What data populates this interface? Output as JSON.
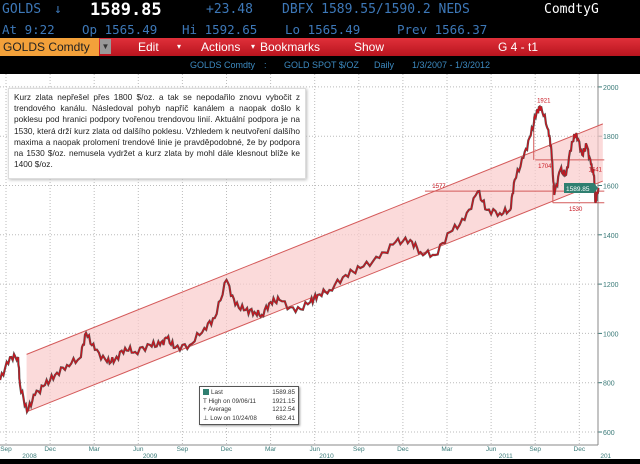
{
  "header": {
    "ticker": "GOLDS",
    "arrow": "↓",
    "last": "1589.85",
    "change": "+23.48",
    "quote": "DBFX 1589.55/1590.2 NEDS",
    "brand": "ComdtyG",
    "time": "At  9:22",
    "open": "Op 1565.49",
    "high": "Hi 1592.65",
    "low": "Lo 1565.49",
    "prev": "Prev 1566.37"
  },
  "menubar": {
    "security": "GOLDS Comdty",
    "edit": "Edit",
    "actions": "Actions",
    "bookmarks": "Bookmarks",
    "show": "Show",
    "page": "G 4 - t1"
  },
  "subtitle": {
    "security": "GOLDS Comdty",
    "sep": ":",
    "name": "GOLD SPOT $/OZ",
    "period": "Daily",
    "range": "1/3/2007 - 1/3/2012"
  },
  "note": "Kurz zlata nepřešel přes 1800 $/oz. a tak se nepodařilo znovu vybočit z trendového kanálu. Následoval pohyb napříč kanálem a naopak došlo k poklesu pod hranici podpory tvořenou trendovou linií. Aktuální podpora je na 1530, která drží kurz zlata od dalšího poklesu. Vzhledem k neutvoření dalšího maxima a naopak prolomení trendové linie je pravděpodobné, že by podpora na 1530 $/oz. nemusela vydržet a kurz zlata by mohl dále klesnout blíže ke 1400 $/oz.",
  "legend": [
    {
      "label": "Last",
      "value": "1589.85",
      "icon": "square"
    },
    {
      "label": "High on 09/06/11",
      "value": "1921.15",
      "icon": "T"
    },
    {
      "label": "Average",
      "value": "1212.54",
      "icon": "+"
    },
    {
      "label": "Low on 10/24/08",
      "value": "682.41",
      "icon": "⊥"
    }
  ],
  "colors": {
    "price": "#c8141e",
    "channel_fill": "#f9caca",
    "channel_line": "#d45a5a",
    "axis_text": "#3a7a78",
    "last_tag": "#2f7f70"
  },
  "chart_data": {
    "type": "line",
    "title": "GOLD SPOT $/OZ",
    "ylim": [
      600,
      2000
    ],
    "y_ticks": [
      600,
      800,
      1000,
      1200,
      1400,
      1600,
      1800,
      2000
    ],
    "y_tick_labels": [
      "600",
      "800",
      "1000",
      "1200",
      "1400",
      "1600",
      "1800",
      "2000"
    ],
    "x_unit": "months since Sep 2008",
    "x_ticks": [
      {
        "m": 0,
        "label": "Sep"
      },
      {
        "m": 3,
        "label": "Dec"
      },
      {
        "m": 6,
        "label": "Mar"
      },
      {
        "m": 9,
        "label": "Jun"
      },
      {
        "m": 12,
        "label": "Sep"
      },
      {
        "m": 15,
        "label": "Dec"
      },
      {
        "m": 18,
        "label": "Mar"
      },
      {
        "m": 21,
        "label": "Jun"
      },
      {
        "m": 24,
        "label": "Sep"
      },
      {
        "m": 27,
        "label": "Dec"
      },
      {
        "m": 30,
        "label": "Mar"
      },
      {
        "m": 33,
        "label": "Jun"
      },
      {
        "m": 36,
        "label": "Sep"
      },
      {
        "m": 39,
        "label": "Dec"
      }
    ],
    "year_labels": [
      {
        "m": 1.6,
        "label": "2008"
      },
      {
        "m": 9.8,
        "label": "2009"
      },
      {
        "m": 21.8,
        "label": "2010"
      },
      {
        "m": 34,
        "label": "2011"
      },
      {
        "m": 40.8,
        "label": "201"
      }
    ],
    "series": [
      {
        "name": "GOLDS Comdty",
        "x": [
          -0.4,
          0.27,
          0.82,
          0.95,
          1.43,
          1.97,
          2.65,
          3.33,
          4.15,
          5.03,
          5.44,
          6.05,
          6.87,
          7.41,
          8.1,
          8.78,
          9.8,
          10.48,
          10.95,
          11.5,
          12.5,
          13.5,
          14.2,
          15.0,
          15.6,
          16.3,
          16.9,
          17.4,
          18.0,
          18.6,
          19.7,
          20.7,
          21.2,
          22.0,
          23.1,
          24.1,
          25.4,
          26.5,
          27.5,
          28.2,
          29.2,
          30.2,
          31.2,
          32.1,
          32.7,
          33.6,
          34.3,
          34.6,
          35.2,
          35.7,
          36.1,
          36.4,
          36.9,
          37.1,
          37.3,
          37.7,
          38.1,
          38.5,
          38.8,
          39.2,
          39.5,
          39.8,
          40.0,
          40.1,
          40.3
        ],
        "y": [
          811,
          904,
          904,
          791,
          682,
          750,
          791,
          831,
          872,
          900,
          1002,
          933,
          884,
          892,
          941,
          925,
          953,
          953,
          981,
          941,
          953,
          1022,
          1062,
          1217,
          1115,
          1095,
          1087,
          1075,
          1127,
          1136,
          1087,
          1127,
          1156,
          1176,
          1237,
          1265,
          1306,
          1371,
          1379,
          1330,
          1318,
          1411,
          1460,
          1577,
          1501,
          1488,
          1501,
          1622,
          1712,
          1805,
          1900,
          1921,
          1825,
          1744,
          1562,
          1663,
          1643,
          1777,
          1813,
          1724,
          1764,
          1683,
          1641,
          1530,
          1590
        ]
      }
    ],
    "channel": {
      "upper": [
        [
          1.4,
          915
        ],
        [
          40.6,
          1850
        ]
      ],
      "lower": [
        [
          1.4,
          682
        ],
        [
          40.6,
          1618
        ]
      ]
    },
    "levels": [
      {
        "value": 1577,
        "from": 28.5,
        "to": 40.7,
        "label": "1577"
      },
      {
        "value": 1704,
        "from": 36.0,
        "to": 40.7,
        "label": "1704"
      },
      {
        "value": 1530,
        "from": 37.2,
        "to": 40.7,
        "label": "1530"
      }
    ],
    "annotations": [
      {
        "m": 36.4,
        "value": 1921,
        "label": "1921"
      },
      {
        "m": 39.9,
        "value": 1641,
        "label": "1641"
      }
    ],
    "last_value": "1589.85"
  }
}
